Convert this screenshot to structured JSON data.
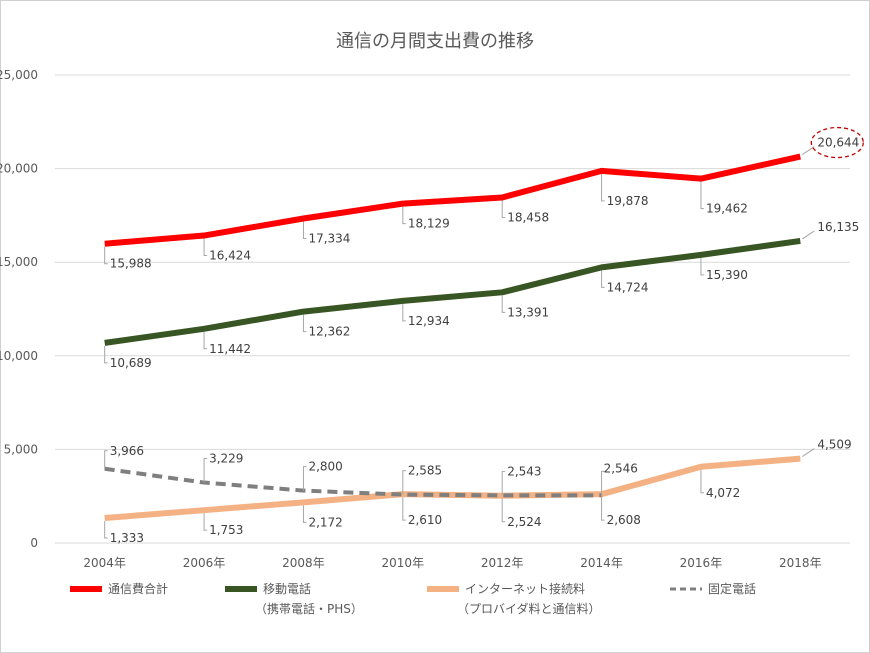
{
  "chart_data": {
    "type": "line",
    "title": "通信の月間支出費の推移",
    "xlabel": "",
    "ylabel": "",
    "ylim": [
      0,
      25000
    ],
    "yticks": [
      0,
      5000,
      10000,
      15000,
      20000,
      25000
    ],
    "ytick_labels": [
      "0",
      "5,000",
      "10,000",
      "15,000",
      "20,000",
      "25,000"
    ],
    "grid": true,
    "legend_position": "bottom",
    "categories": [
      "2004年",
      "2006年",
      "2008年",
      "2010年",
      "2012年",
      "2014年",
      "2016年",
      "2018年"
    ],
    "series": [
      {
        "name": "通信費合計",
        "subname": "",
        "color": "#ff0000",
        "style": "solid",
        "values": [
          15988,
          16424,
          17334,
          18129,
          18458,
          19878,
          19462,
          20644
        ],
        "labels": [
          "15,988",
          "16,424",
          "17,334",
          "18,129",
          "18,458",
          "19,878",
          "19,462",
          "20,644"
        ]
      },
      {
        "name": "移動電話",
        "subname": "（携帯電話・PHS）",
        "color": "#375623",
        "style": "solid",
        "values": [
          10689,
          11442,
          12362,
          12934,
          13391,
          14724,
          15390,
          16135
        ],
        "labels": [
          "10,689",
          "11,442",
          "12,362",
          "12,934",
          "13,391",
          "14,724",
          "15,390",
          "16,135"
        ]
      },
      {
        "name": "インターネット接続料",
        "subname": "（プロバイダ料と通信料）",
        "color": "#f4b183",
        "style": "solid",
        "values": [
          1333,
          1753,
          2172,
          2610,
          2524,
          2608,
          4072,
          4509
        ],
        "labels": [
          "1,333",
          "1,753",
          "2,172",
          "2,610",
          "2,524",
          "2,608",
          "4,072",
          "4,509"
        ]
      },
      {
        "name": "固定電話",
        "subname": "",
        "color": "#7f7f7f",
        "style": "dashed",
        "values": [
          3966,
          3229,
          2800,
          2585,
          2543,
          2546,
          null,
          null
        ],
        "labels": [
          "3,966",
          "3,229",
          "2,800",
          "2,585",
          "2,543",
          "2,546",
          null,
          null
        ]
      }
    ],
    "highlight": {
      "series": 0,
      "point": 7,
      "color": "#c00000"
    }
  }
}
